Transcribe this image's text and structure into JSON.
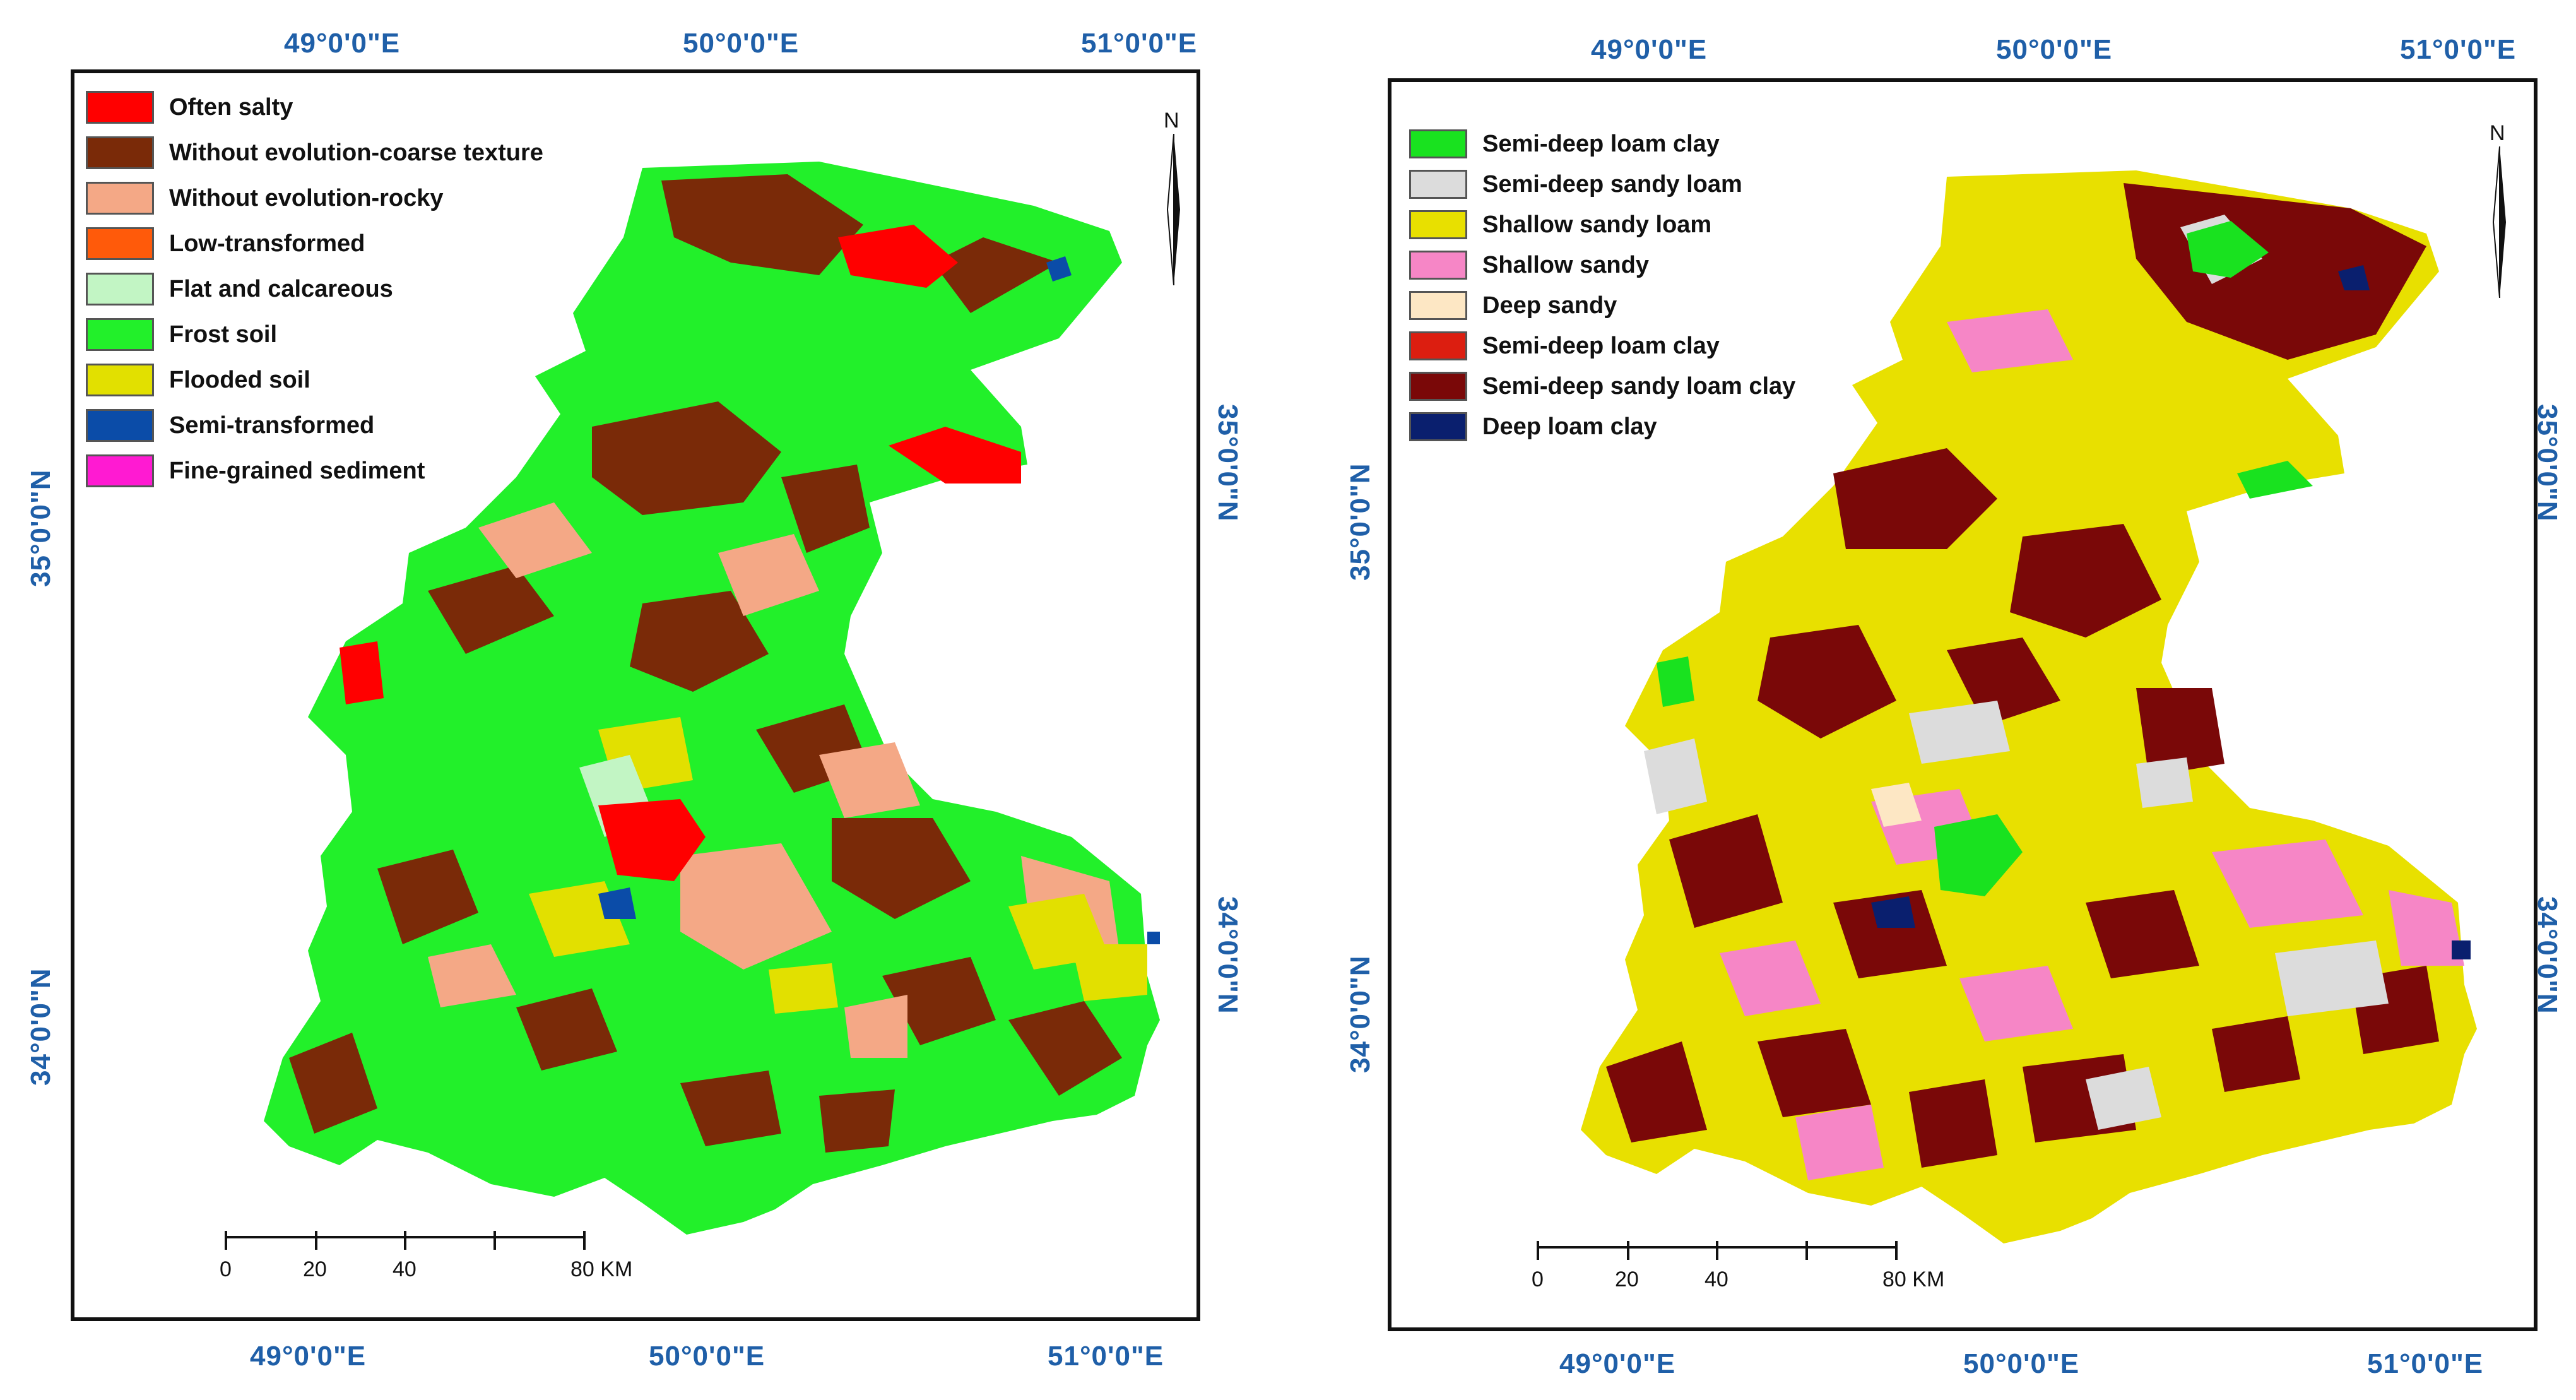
{
  "colors": {
    "coord_text": "#1f5fa8",
    "left": {
      "often_salty": "#ff0000",
      "without_evolution_coarse": "#7a2a08",
      "without_evolution_rocky": "#f4a886",
      "low_transformed": "#ff5a0a",
      "flat_calcareous": "#c2f5c4",
      "frost_soil": "#22f02a",
      "flooded_soil": "#e2e000",
      "semi_transformed": "#0b4ca8",
      "fine_grained_sediment": "#ff1ad2"
    },
    "right": {
      "semi_deep_loam_clay_green": "#19e21f",
      "semi_deep_sandy_loam": "#dcdcdc",
      "shallow_sandy_loam": "#e8e000",
      "shallow_sandy": "#f686c6",
      "deep_sandy": "#fde7c4",
      "semi_deep_loam_clay_red": "#dc1e10",
      "semi_deep_sandy_loam_clay": "#7a0808",
      "deep_loam_clay": "#0a1f6e"
    }
  },
  "left_map": {
    "top_labels": [
      "49°0'0\"E",
      "50°0'0\"E",
      "51°0'0\"E"
    ],
    "bottom_labels": [
      "49°0'0\"E",
      "50°0'0\"E",
      "51°0'0\"E"
    ],
    "left_labels": [
      "35°0'0\"N",
      "34°0'0\"N"
    ],
    "right_labels": [
      "35°0'0\"N",
      "34°0'0\"N"
    ],
    "legend": [
      {
        "label": "Often salty",
        "color_key": "often_salty"
      },
      {
        "label": "Without evolution-coarse texture",
        "color_key": "without_evolution_coarse"
      },
      {
        "label": "Without evolution-rocky",
        "color_key": "without_evolution_rocky"
      },
      {
        "label": "Low-transformed",
        "color_key": "low_transformed"
      },
      {
        "label": "Flat and calcareous",
        "color_key": "flat_calcareous"
      },
      {
        "label": "Frost soil",
        "color_key": "frost_soil"
      },
      {
        "label": "Flooded soil",
        "color_key": "flooded_soil"
      },
      {
        "label": "Semi-transformed",
        "color_key": "semi_transformed"
      },
      {
        "label": "Fine-grained sediment",
        "color_key": "fine_grained_sediment"
      }
    ],
    "north": "N",
    "scale": {
      "labels": [
        "0",
        "20",
        "40",
        "80 KM"
      ]
    }
  },
  "right_map": {
    "top_labels": [
      "49°0'0\"E",
      "50°0'0\"E",
      "51°0'0\"E"
    ],
    "bottom_labels": [
      "49°0'0\"E",
      "50°0'0\"E",
      "51°0'0\"E"
    ],
    "left_labels": [
      "35°0'0\"N",
      "34°0'0\"N"
    ],
    "right_labels": [
      "35°0'0\"N",
      "34°0'0\"N"
    ],
    "legend": [
      {
        "label": "Semi-deep loam clay",
        "color_key": "semi_deep_loam_clay_green"
      },
      {
        "label": "Semi-deep sandy loam",
        "color_key": "semi_deep_sandy_loam"
      },
      {
        "label": "Shallow sandy loam",
        "color_key": "shallow_sandy_loam"
      },
      {
        "label": "Shallow sandy",
        "color_key": "shallow_sandy"
      },
      {
        "label": "Deep sandy",
        "color_key": "deep_sandy"
      },
      {
        "label": "Semi-deep loam clay",
        "color_key": "semi_deep_loam_clay_red"
      },
      {
        "label": "Semi-deep sandy loam clay",
        "color_key": "semi_deep_sandy_loam_clay"
      },
      {
        "label": "Deep loam clay",
        "color_key": "deep_loam_clay"
      }
    ],
    "north": "N",
    "scale": {
      "labels": [
        "0",
        "20",
        "40",
        "80 KM"
      ]
    }
  }
}
